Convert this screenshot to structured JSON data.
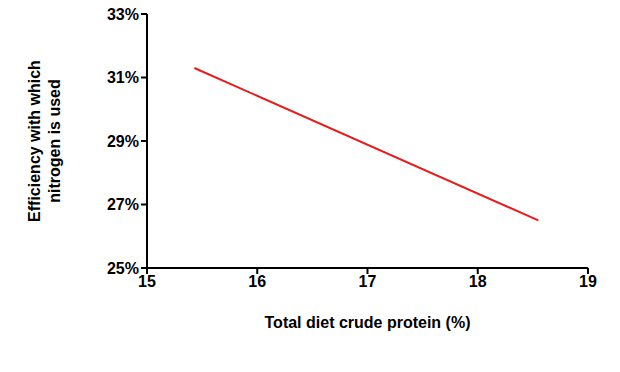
{
  "chart_data": {
    "type": "line",
    "x_label": "Total diet crude protein (%)",
    "y_label": "Efficiency with which nitrogen is used",
    "x": [
      15.43,
      18.55
    ],
    "values": [
      31.3,
      26.5
    ],
    "color": "#e41e1e",
    "xlim": [
      15,
      19
    ],
    "xticks": [
      15,
      16,
      17,
      18,
      19
    ],
    "ylim": [
      25,
      33
    ],
    "yticks": [
      {
        "value": 25,
        "label": "25%"
      },
      {
        "value": 27,
        "label": "27%"
      },
      {
        "value": 29,
        "label": "29%"
      },
      {
        "value": 31,
        "label": "31%"
      },
      {
        "value": 33,
        "label": "33%"
      }
    ],
    "grid": false
  }
}
